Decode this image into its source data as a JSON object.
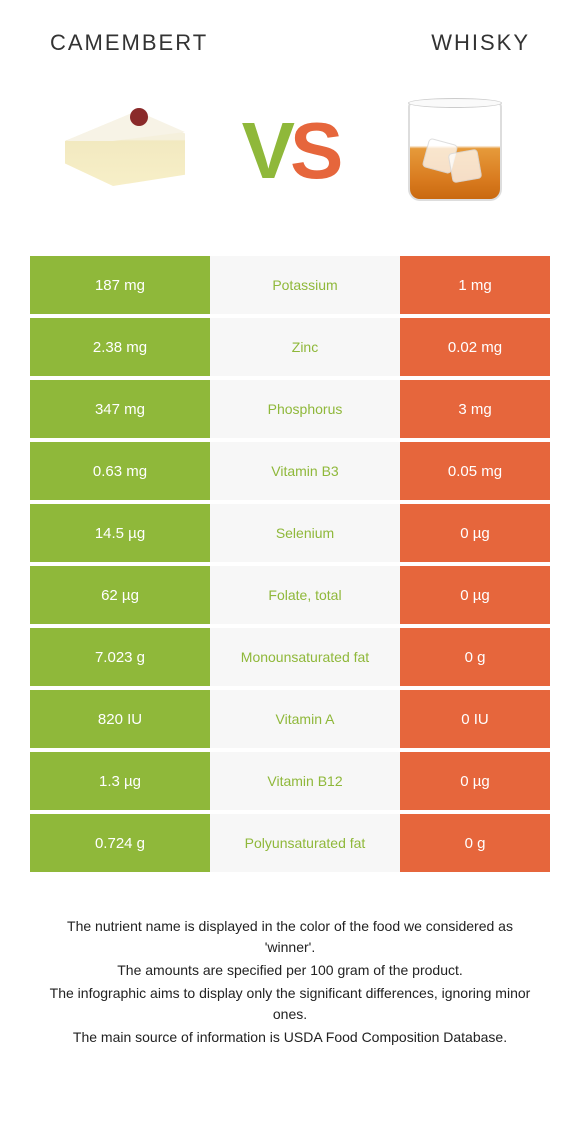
{
  "header": {
    "left": "CAMEMBERT",
    "right": "WHISKY"
  },
  "vs": {
    "v": "V",
    "s": "S"
  },
  "colors": {
    "left_bg": "#8fb83a",
    "right_bg": "#e6663c",
    "mid_bg": "#f7f7f7",
    "cell_text": "#ffffff"
  },
  "rows": [
    {
      "left": "187 mg",
      "label": "Potassium",
      "label_color": "#8fb83a",
      "right": "1 mg"
    },
    {
      "left": "2.38 mg",
      "label": "Zinc",
      "label_color": "#8fb83a",
      "right": "0.02 mg"
    },
    {
      "left": "347 mg",
      "label": "Phosphorus",
      "label_color": "#8fb83a",
      "right": "3 mg"
    },
    {
      "left": "0.63 mg",
      "label": "Vitamin B3",
      "label_color": "#8fb83a",
      "right": "0.05 mg"
    },
    {
      "left": "14.5 µg",
      "label": "Selenium",
      "label_color": "#8fb83a",
      "right": "0 µg"
    },
    {
      "left": "62 µg",
      "label": "Folate, total",
      "label_color": "#8fb83a",
      "right": "0 µg"
    },
    {
      "left": "7.023 g",
      "label": "Monounsaturated fat",
      "label_color": "#8fb83a",
      "right": "0 g"
    },
    {
      "left": "820 IU",
      "label": "Vitamin A",
      "label_color": "#8fb83a",
      "right": "0 IU"
    },
    {
      "left": "1.3 µg",
      "label": "Vitamin B12",
      "label_color": "#8fb83a",
      "right": "0 µg"
    },
    {
      "left": "0.724 g",
      "label": "Polyunsaturated fat",
      "label_color": "#8fb83a",
      "right": "0 g"
    }
  ],
  "footer": {
    "line1": "The nutrient name is displayed in the color of the food we considered as 'winner'.",
    "line2": "The amounts are specified per 100 gram of the product.",
    "line3": "The infographic aims to display only the significant differences, ignoring minor ones.",
    "line4": "The main source of information is USDA Food Composition Database."
  }
}
